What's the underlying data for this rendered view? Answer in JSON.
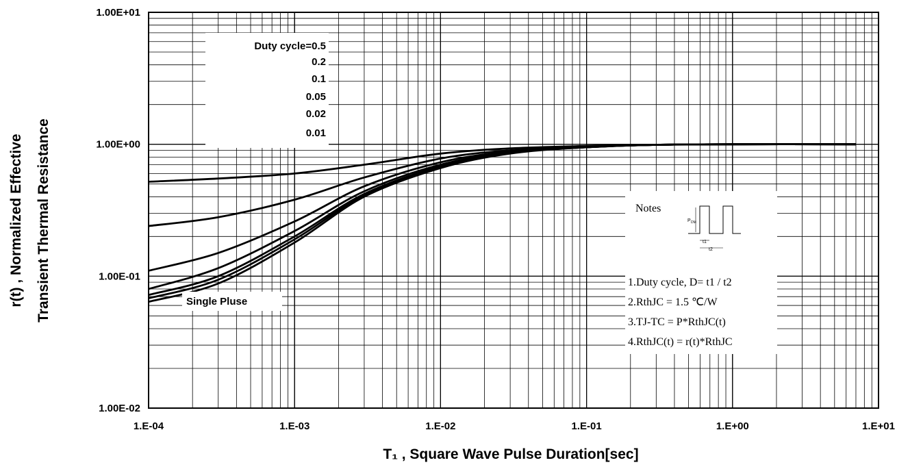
{
  "chart_data": {
    "type": "line",
    "title": "",
    "xlabel": "T₁ , Square Wave Pulse Duration[sec]",
    "ylabel_lines": [
      "r(t) , Normalized Effective",
      "Transient Thermal Resistance"
    ],
    "x_scale": "log",
    "y_scale": "log",
    "xlim": [
      0.0001,
      10
    ],
    "ylim": [
      0.01,
      10
    ],
    "x_tick_labels": [
      "1.E-04",
      "1.E-03",
      "1.E-02",
      "1.E-01",
      "1.E+00",
      "1.E+01"
    ],
    "y_tick_labels": [
      "1.00E-02",
      "1.00E-01",
      "1.00E+00",
      "1.00E+01"
    ],
    "grid": true,
    "legend_title": "Duty cycle=0.5",
    "legend_values": [
      "0.2",
      "0.1",
      "0.05",
      "0.02",
      "0.01"
    ],
    "single_pulse_label": "Single Pluse",
    "series": [
      {
        "x": [
          0.0001,
          0.0003,
          0.001,
          0.003,
          0.01,
          0.03,
          0.1,
          0.3,
          1,
          7
        ],
        "values": [
          0.52,
          0.55,
          0.6,
          0.7,
          0.85,
          0.93,
          0.97,
          0.99,
          1.0,
          1.0
        ]
      },
      {
        "x": [
          0.0001,
          0.0003,
          0.001,
          0.003,
          0.01,
          0.03,
          0.1,
          0.3,
          1,
          7
        ],
        "values": [
          0.24,
          0.28,
          0.38,
          0.56,
          0.78,
          0.9,
          0.96,
          0.99,
          1.0,
          1.0
        ]
      },
      {
        "x": [
          0.0001,
          0.0003,
          0.001,
          0.003,
          0.01,
          0.03,
          0.1,
          0.3,
          1,
          7
        ],
        "values": [
          0.11,
          0.15,
          0.26,
          0.48,
          0.73,
          0.88,
          0.95,
          0.99,
          1.0,
          1.0
        ]
      },
      {
        "x": [
          0.0001,
          0.0003,
          0.001,
          0.003,
          0.01,
          0.03,
          0.1,
          0.3,
          1,
          7
        ],
        "values": [
          0.08,
          0.115,
          0.22,
          0.44,
          0.7,
          0.87,
          0.95,
          0.99,
          1.0,
          1.0
        ]
      },
      {
        "x": [
          0.0001,
          0.0003,
          0.001,
          0.003,
          0.01,
          0.03,
          0.1,
          0.3,
          1,
          7
        ],
        "values": [
          0.072,
          0.1,
          0.2,
          0.42,
          0.68,
          0.86,
          0.95,
          0.99,
          1.0,
          1.0
        ]
      },
      {
        "x": [
          0.0001,
          0.0003,
          0.001,
          0.003,
          0.01,
          0.03,
          0.1,
          0.3,
          1,
          7
        ],
        "values": [
          0.068,
          0.094,
          0.19,
          0.41,
          0.67,
          0.86,
          0.95,
          0.99,
          1.0,
          1.0
        ]
      },
      {
        "x": [
          0.0001,
          0.0003,
          0.001,
          0.003,
          0.01,
          0.03,
          0.1,
          0.3,
          1,
          7
        ],
        "values": [
          0.064,
          0.088,
          0.18,
          0.4,
          0.66,
          0.85,
          0.95,
          0.99,
          1.0,
          1.0
        ]
      }
    ],
    "notes": {
      "title": "Notes",
      "lines": [
        "1.Duty cycle, D= t1 / t2",
        "2.RthJC =    1.5  ℃/W",
        "3.TJ-TC = P*RthJC(t)",
        "4.RthJC(t) = r(t)*RthJC"
      ],
      "diagram_labels": [
        "P",
        "DM",
        "t1",
        "t2"
      ]
    },
    "colors": {
      "line": "#000000",
      "grid": "#000000",
      "background": "#ffffff"
    }
  }
}
